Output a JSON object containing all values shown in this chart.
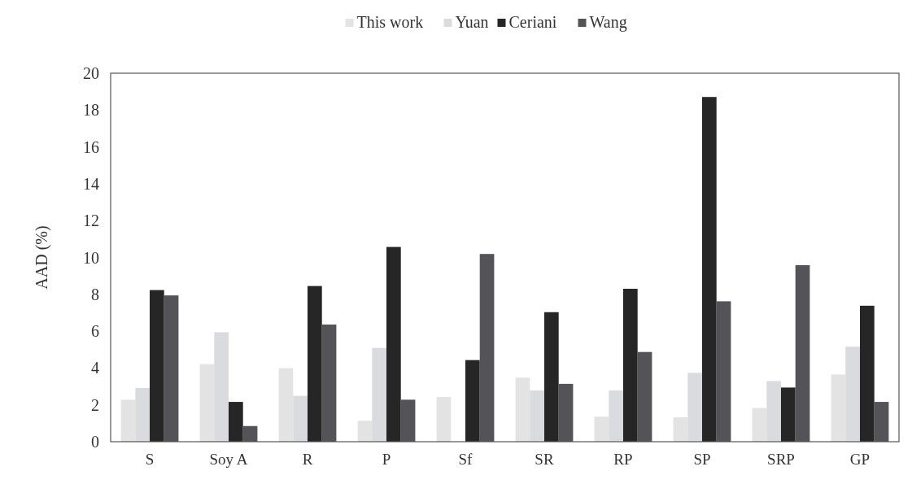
{
  "chart_data": {
    "type": "bar",
    "ylabel": "AAD (%)",
    "categories": [
      "S",
      "Soy A",
      "R",
      "P",
      "Sf",
      "SR",
      "RP",
      "SP",
      "SRP",
      "GP"
    ],
    "series": [
      {
        "name": "This work",
        "color": "#e3e3e3",
        "values": [
          2.28,
          4.21,
          3.99,
          1.14,
          2.43,
          3.48,
          1.36,
          1.33,
          1.83,
          3.65
        ]
      },
      {
        "name": "Yuan",
        "color": "#dadbde",
        "values": [
          2.92,
          5.94,
          2.49,
          5.09,
          null,
          2.78,
          2.78,
          3.74,
          3.29,
          5.16
        ]
      },
      {
        "name": "Ceriani",
        "color": "#262626",
        "values": [
          8.23,
          2.16,
          8.45,
          10.57,
          4.43,
          7.03,
          8.3,
          18.71,
          2.94,
          7.38
        ]
      },
      {
        "name": "Wang",
        "color": "#545458",
        "values": [
          7.94,
          0.85,
          6.36,
          2.28,
          10.19,
          3.14,
          4.87,
          7.62,
          9.58,
          2.16
        ]
      }
    ],
    "ylim": [
      0,
      20
    ],
    "yticks": [
      0,
      2,
      4,
      6,
      8,
      10,
      12,
      14,
      16,
      18,
      20
    ],
    "grid": false,
    "legend": "top"
  }
}
